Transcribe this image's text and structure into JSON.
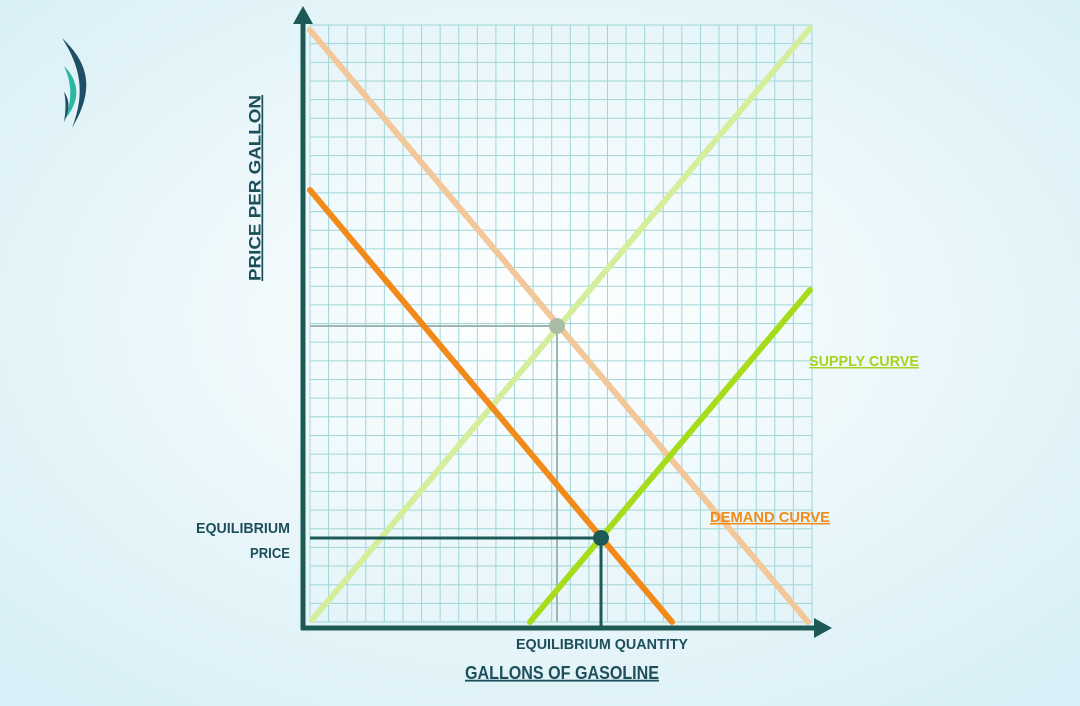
{
  "axes": {
    "y_label": "PRICE PER GALLON",
    "x_label": "GALLONS OF GASOLINE"
  },
  "labels": {
    "supply": "SUPPLY CURVE",
    "demand": "DEMAND CURVE",
    "equilibrium_price": [
      "EQUILIBRIUM",
      "PRICE"
    ],
    "equilibrium_quantity": "EQUILIBRIUM QUANTITY"
  }
}
